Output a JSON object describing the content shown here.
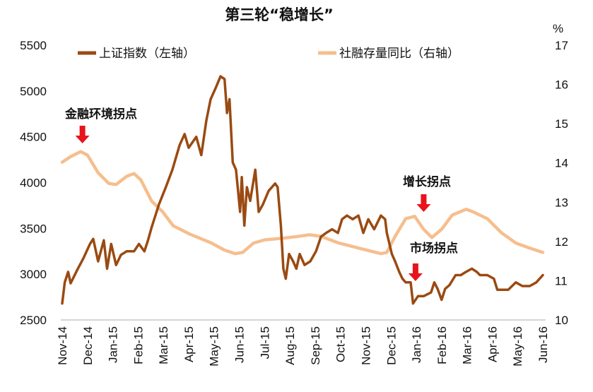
{
  "chart_data": {
    "type": "line",
    "title": "第三轮“稳增长”",
    "right_unit": "%",
    "legend_placement": "top",
    "grid": false,
    "x_ticks": [
      "Nov-14",
      "Dec-14",
      "Jan-15",
      "Feb-15",
      "Mar-15",
      "Apr-15",
      "May-15",
      "Jun-15",
      "Jul-15",
      "Aug-15",
      "Sep-15",
      "Oct-15",
      "Nov-15",
      "Dec-15",
      "Jan-16",
      "Feb-16",
      "Mar-16",
      "Apr-16",
      "May-16",
      "Jun-16"
    ],
    "xlim": [
      "2014-11-01",
      "2016-06-01"
    ],
    "y_left": {
      "ticks": [
        2500,
        3000,
        3500,
        4000,
        4500,
        5000,
        5500
      ],
      "lim": [
        2500,
        5500
      ]
    },
    "y_right": {
      "ticks": [
        10,
        11,
        12,
        13,
        14,
        15,
        16,
        17
      ],
      "lim": [
        10,
        17
      ]
    },
    "series": [
      {
        "name": "上证指数（左轴）",
        "axis": "left",
        "color": "#9A4A12",
        "points": [
          [
            "2014-11-01",
            2680
          ],
          [
            "2014-11-04",
            2910
          ],
          [
            "2014-11-08",
            3025
          ],
          [
            "2014-11-11",
            2900
          ],
          [
            "2014-11-19",
            3050
          ],
          [
            "2014-11-26",
            3170
          ],
          [
            "2014-12-04",
            3330
          ],
          [
            "2014-12-08",
            3385
          ],
          [
            "2014-12-14",
            3140
          ],
          [
            "2014-12-21",
            3370
          ],
          [
            "2014-12-25",
            3060
          ],
          [
            "2014-12-30",
            3330
          ],
          [
            "2015-01-05",
            3100
          ],
          [
            "2015-01-11",
            3210
          ],
          [
            "2015-01-18",
            3250
          ],
          [
            "2015-01-27",
            3250
          ],
          [
            "2015-02-02",
            3330
          ],
          [
            "2015-02-08",
            3250
          ],
          [
            "2015-02-12",
            3370
          ],
          [
            "2015-02-16",
            3510
          ],
          [
            "2015-02-24",
            3760
          ],
          [
            "2015-03-04",
            3950
          ],
          [
            "2015-03-12",
            4140
          ],
          [
            "2015-03-21",
            4410
          ],
          [
            "2015-03-27",
            4530
          ],
          [
            "2015-04-01",
            4380
          ],
          [
            "2015-04-10",
            4500
          ],
          [
            "2015-04-16",
            4300
          ],
          [
            "2015-04-22",
            4680
          ],
          [
            "2015-04-27",
            4910
          ],
          [
            "2015-05-03",
            5030
          ],
          [
            "2015-05-09",
            5160
          ],
          [
            "2015-05-14",
            5130
          ],
          [
            "2015-05-17",
            4760
          ],
          [
            "2015-05-20",
            4910
          ],
          [
            "2015-05-24",
            4220
          ],
          [
            "2015-05-28",
            4140
          ],
          [
            "2015-06-02",
            3680
          ],
          [
            "2015-06-04",
            4060
          ],
          [
            "2015-06-07",
            3530
          ],
          [
            "2015-06-10",
            3950
          ],
          [
            "2015-06-14",
            3800
          ],
          [
            "2015-06-20",
            4140
          ],
          [
            "2015-06-24",
            3680
          ],
          [
            "2015-06-29",
            3760
          ],
          [
            "2015-07-06",
            3910
          ],
          [
            "2015-07-14",
            3990
          ],
          [
            "2015-07-17",
            3950
          ],
          [
            "2015-07-21",
            3530
          ],
          [
            "2015-07-24",
            3060
          ],
          [
            "2015-07-27",
            2950
          ],
          [
            "2015-07-31",
            3220
          ],
          [
            "2015-08-05",
            3140
          ],
          [
            "2015-08-09",
            3060
          ],
          [
            "2015-08-13",
            3220
          ],
          [
            "2015-08-19",
            3100
          ],
          [
            "2015-08-26",
            3140
          ],
          [
            "2015-09-02",
            3250
          ],
          [
            "2015-09-08",
            3410
          ],
          [
            "2015-09-14",
            3450
          ],
          [
            "2015-09-21",
            3490
          ],
          [
            "2015-09-28",
            3450
          ],
          [
            "2015-10-03",
            3600
          ],
          [
            "2015-10-09",
            3640
          ],
          [
            "2015-10-16",
            3600
          ],
          [
            "2015-10-23",
            3640
          ],
          [
            "2015-10-29",
            3450
          ],
          [
            "2015-11-04",
            3600
          ],
          [
            "2015-11-11",
            3490
          ],
          [
            "2015-11-19",
            3640
          ],
          [
            "2015-11-24",
            3600
          ],
          [
            "2015-11-26",
            3450
          ],
          [
            "2015-12-02",
            3220
          ],
          [
            "2015-12-06",
            3140
          ],
          [
            "2015-12-11",
            3025
          ],
          [
            "2015-12-15",
            2950
          ],
          [
            "2015-12-19",
            2910
          ],
          [
            "2015-12-25",
            2910
          ],
          [
            "2015-12-28",
            2680
          ],
          [
            "2016-01-03",
            2760
          ],
          [
            "2016-01-10",
            2760
          ],
          [
            "2016-01-19",
            2800
          ],
          [
            "2016-01-23",
            2910
          ],
          [
            "2016-01-27",
            2840
          ],
          [
            "2016-02-01",
            2720
          ],
          [
            "2016-02-05",
            2840
          ],
          [
            "2016-02-10",
            2880
          ],
          [
            "2016-02-17",
            2990
          ],
          [
            "2016-02-23",
            2990
          ],
          [
            "2016-02-29",
            3025
          ],
          [
            "2016-03-07",
            3060
          ],
          [
            "2016-03-13",
            3025
          ],
          [
            "2016-03-17",
            2990
          ],
          [
            "2016-03-26",
            2990
          ],
          [
            "2016-04-03",
            2950
          ],
          [
            "2016-04-07",
            2830
          ],
          [
            "2016-04-16",
            2830
          ],
          [
            "2016-04-20",
            2830
          ],
          [
            "2016-04-29",
            2910
          ],
          [
            "2016-05-07",
            2870
          ],
          [
            "2016-05-16",
            2870
          ],
          [
            "2016-05-24",
            2910
          ],
          [
            "2016-06-01",
            2990
          ]
        ]
      },
      {
        "name": "社融存量同比（右轴）",
        "axis": "right",
        "color": "#F6BE8E",
        "points": [
          [
            "2014-11-01",
            14.02
          ],
          [
            "2014-11-11",
            14.16
          ],
          [
            "2014-11-23",
            14.29
          ],
          [
            "2014-12-01",
            14.2
          ],
          [
            "2014-12-14",
            13.75
          ],
          [
            "2014-12-27",
            13.48
          ],
          [
            "2015-01-05",
            13.45
          ],
          [
            "2015-01-18",
            13.66
          ],
          [
            "2015-01-27",
            13.73
          ],
          [
            "2015-02-04",
            13.57
          ],
          [
            "2015-02-16",
            13.03
          ],
          [
            "2015-02-28",
            12.76
          ],
          [
            "2015-03-13",
            12.4
          ],
          [
            "2015-04-02",
            12.19
          ],
          [
            "2015-04-28",
            11.96
          ],
          [
            "2015-05-14",
            11.78
          ],
          [
            "2015-05-27",
            11.69
          ],
          [
            "2015-06-05",
            11.72
          ],
          [
            "2015-06-18",
            11.96
          ],
          [
            "2015-07-01",
            12.04
          ],
          [
            "2015-07-22",
            12.08
          ],
          [
            "2015-08-08",
            12.12
          ],
          [
            "2015-08-25",
            12.17
          ],
          [
            "2015-09-08",
            12.13
          ],
          [
            "2015-09-29",
            11.96
          ],
          [
            "2015-10-16",
            11.87
          ],
          [
            "2015-11-02",
            11.78
          ],
          [
            "2015-11-19",
            11.69
          ],
          [
            "2015-11-26",
            11.72
          ],
          [
            "2015-12-06",
            12.13
          ],
          [
            "2015-12-19",
            12.58
          ],
          [
            "2015-12-30",
            12.64
          ],
          [
            "2016-01-10",
            12.31
          ],
          [
            "2016-01-20",
            12.1
          ],
          [
            "2016-02-01",
            12.31
          ],
          [
            "2016-02-13",
            12.67
          ],
          [
            "2016-02-29",
            12.82
          ],
          [
            "2016-03-08",
            12.76
          ],
          [
            "2016-03-26",
            12.58
          ],
          [
            "2016-04-12",
            12.22
          ],
          [
            "2016-04-29",
            11.96
          ],
          [
            "2016-05-16",
            11.83
          ],
          [
            "2016-06-01",
            11.72
          ]
        ]
      }
    ],
    "annotations": [
      {
        "text": "金融环境拐点",
        "date": "2014-11-25",
        "arrow": "down",
        "color": "#E8141B"
      },
      {
        "text": "增长拐点",
        "date": "2016-01-10",
        "arrow": "down",
        "color": "#E8141B"
      },
      {
        "text": "市场拐点",
        "date": "2015-12-31",
        "arrow": "down",
        "color": "#E8141B"
      }
    ]
  }
}
